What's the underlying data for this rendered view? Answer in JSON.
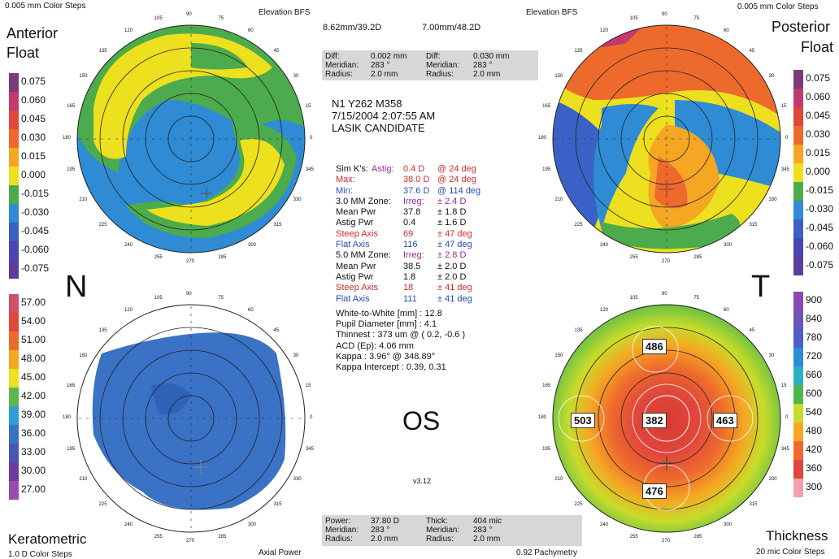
{
  "top_left": {
    "caption": "0.005 mm Color Steps",
    "title_line1": "Anterior",
    "title_line2": "Float",
    "map_type": "Elevation BFS"
  },
  "top_right": {
    "caption": "0.005 mm Color Steps",
    "title_line1": "Posterior",
    "title_line2": "Float",
    "map_type": "Elevation BFS"
  },
  "bfs": {
    "anterior": "8.62mm/39.2D",
    "posterior": "7.00mm/48.2D"
  },
  "diff_box": {
    "left": {
      "diff_label": "Diff:",
      "diff": "0.002 mm",
      "meridian_label": "Meridian:",
      "meridian": "283 °",
      "radius_label": "Radius:",
      "radius": "2.0 mm"
    },
    "right": {
      "diff_label": "Diff:",
      "diff": "0.030 mm",
      "meridian_label": "Meridian:",
      "meridian": "283 °",
      "radius_label": "Radius:",
      "radius": "2.0 mm"
    }
  },
  "patient": {
    "line1": "N1 Y262 M358",
    "line2": "7/15/2004 2:07:55 AM",
    "line3": "LASIK CANDIDATE"
  },
  "simk": {
    "label": "Sim K's:",
    "astig_label": "Astig:",
    "astig": "0.4 D",
    "astig_axis": "@ 24 deg",
    "max_label": "Max:",
    "max": "38.0 D",
    "max_axis": "@ 24 deg",
    "min_label": "Min:",
    "min": "37.6 D",
    "min_axis": "@ 114 deg"
  },
  "zone3": {
    "label": "3.0 MM Zone:",
    "irreg_label": "Irreg:",
    "irreg": "± 2.4 D",
    "mean_label": "Mean Pwr",
    "mean": "37.8",
    "mean_sd": "± 1.8 D",
    "astig_label": "Astig Pwr",
    "astig": "0.4",
    "astig_sd": "± 1.6 D",
    "steep_label": "Steep Axis",
    "steep": "69",
    "steep_sd": "± 47 deg",
    "flat_label": "Flat Axis",
    "flat": "116",
    "flat_sd": "± 47 deg"
  },
  "zone5": {
    "label": "5.0 MM Zone:",
    "irreg_label": "Irreg:",
    "irreg": "± 2.8 D",
    "mean_label": "Mean Pwr",
    "mean": "38.5",
    "mean_sd": "± 2.0 D",
    "astig_label": "Astig Pwr",
    "astig": "1.8",
    "astig_sd": "± 2.0 D",
    "steep_label": "Steep Axis",
    "steep": "18",
    "steep_sd": "± 41 deg",
    "flat_label": "Flat Axis",
    "flat": "111",
    "flat_sd": "± 41 deg"
  },
  "misc": [
    "White-to-White [mm] : 12.8",
    "Pupil Diameter [mm] :  4.1",
    "Thinnest : 373 um @ ( 0.2, -0.6 )",
    "ACD (Ep): 4.06 mm",
    "Kappa : 3.96° @ 348.89°",
    "Kappa Intercept : 0.39, 0.31"
  ],
  "eye": "OS",
  "version": "v3.12",
  "orient": {
    "left": "N",
    "right": "T"
  },
  "bottom_box": {
    "left": {
      "power_label": "Power:",
      "power": "37.80 D",
      "meridian_label": "Meridian:",
      "meridian": "283 °",
      "radius_label": "Radius:",
      "radius": "2.0 mm"
    },
    "right": {
      "thick_label": "Thick:",
      "thick": "404 mic",
      "meridian_label": "Meridian:",
      "meridian": "283 °",
      "radius_label": "Radius:",
      "radius": "2.0 mm"
    }
  },
  "bottom_left": {
    "title": "Keratometric",
    "caption": "1.0 D Color Steps",
    "map_type": "Axial Power"
  },
  "bottom_right": {
    "title": "Thickness",
    "caption": "20 mic Color Steps",
    "map_type": "0.92 Pachymetry"
  },
  "pachy_values": {
    "center": "382",
    "top": "486",
    "left": "503",
    "right": "463",
    "bottom": "476"
  },
  "float_scale": [
    "0.075",
    "0.060",
    "0.045",
    "0.030",
    "0.015",
    "0.000",
    "-0.015",
    "-0.030",
    "-0.045",
    "-0.060",
    "-0.075"
  ],
  "float_colors": [
    "#7a3b7a",
    "#c23a6b",
    "#e0463c",
    "#ee6a2c",
    "#f5a623",
    "#ede01e",
    "#4cab4c",
    "#2e8bd4",
    "#3a62c6",
    "#4a45b0",
    "#5b3d9c"
  ],
  "kerat_scale": [
    "57.00",
    "54.00",
    "51.00",
    "48.00",
    "45.00",
    "42.00",
    "39.00",
    "36.00",
    "33.00",
    "30.00",
    "27.00"
  ],
  "kerat_colors": [
    "#d0506a",
    "#e0463c",
    "#ee6a2c",
    "#f5a623",
    "#ede01e",
    "#5cb84c",
    "#2e9ed4",
    "#3a72c6",
    "#4a55b0",
    "#6a3d9c",
    "#9a4ab0"
  ],
  "thick_scale": [
    "900",
    "840",
    "780",
    "720",
    "660",
    "600",
    "540",
    "480",
    "420",
    "360",
    "300"
  ],
  "thick_colors": [
    "#8a4ab0",
    "#6a55b8",
    "#4a62c6",
    "#2e8bd4",
    "#2ab0c0",
    "#4cb84c",
    "#c8dc2a",
    "#f5a623",
    "#ee6a2c",
    "#e0463c",
    "#f2a0b0"
  ],
  "axis_labels": [
    "90",
    "75",
    "60",
    "45",
    "30",
    "15",
    "0",
    "345",
    "330",
    "315",
    "300",
    "285",
    "270",
    "255",
    "240",
    "225",
    "210",
    "195",
    "180",
    "165",
    "150",
    "135",
    "120",
    "105"
  ]
}
